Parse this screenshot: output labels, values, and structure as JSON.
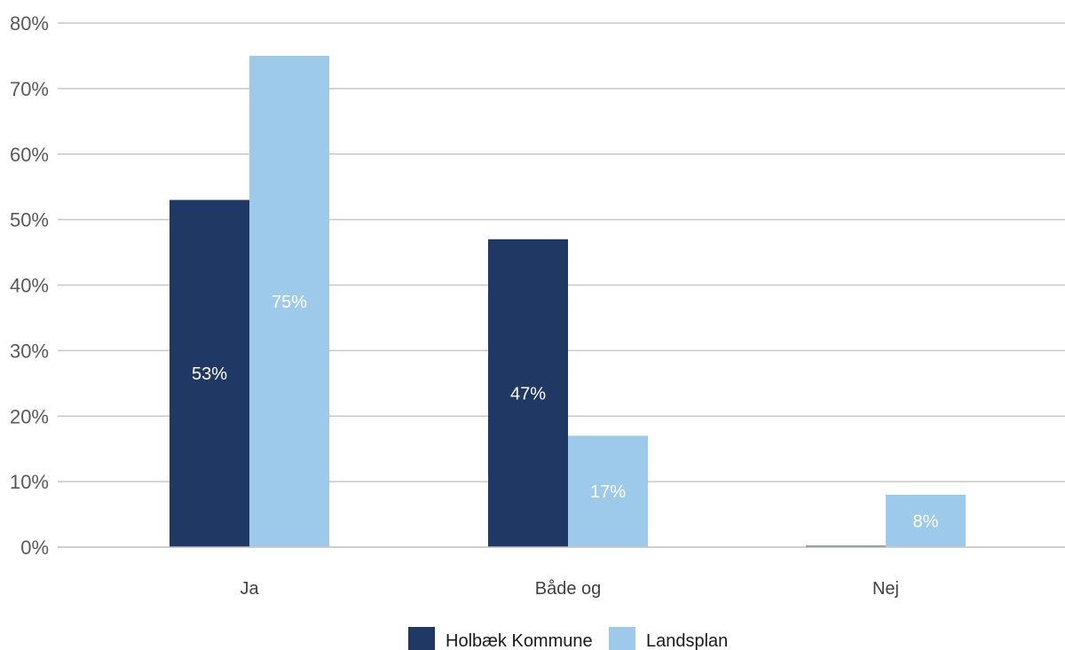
{
  "chart_data": {
    "type": "bar",
    "categories": [
      "Ja",
      "Både og",
      "Nej"
    ],
    "series": [
      {
        "name": "Holbæk Kommune",
        "values": [
          53,
          47,
          0
        ],
        "labels": [
          "53%",
          "47%",
          ""
        ],
        "color": "#203864"
      },
      {
        "name": "Landsplan",
        "values": [
          75,
          17,
          8
        ],
        "labels": [
          "75%",
          "17%",
          "8%"
        ],
        "color": "#9dc9ea"
      }
    ],
    "ylim": [
      0,
      80
    ],
    "yticks": [
      0,
      10,
      20,
      30,
      40,
      50,
      60,
      70,
      80
    ],
    "ytick_labels": [
      "0%",
      "10%",
      "20%",
      "30%",
      "40%",
      "50%",
      "60%",
      "70%",
      "80%"
    ],
    "grid": true,
    "legend_position": "bottom"
  }
}
